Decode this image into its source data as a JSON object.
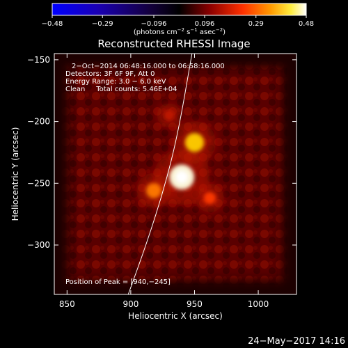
{
  "chart_data": {
    "type": "heatmap",
    "title": "Reconstructed RHESSI Image",
    "xlabel": "Heliocentric X (arcsec)",
    "ylabel": "Heliocentric Y (arcsec)",
    "xlim": [
      840,
      1030
    ],
    "ylim": [
      -340,
      -145
    ],
    "x_ticks": [
      850,
      900,
      950,
      1000
    ],
    "y_ticks": [
      -150,
      -200,
      -250,
      -300
    ],
    "x_tick_labels": [
      "850",
      "900",
      "950",
      "1000"
    ],
    "y_tick_labels": [
      "−150",
      "−200",
      "−250",
      "−300"
    ],
    "colorbar": {
      "colormap": "blue-black-red-yellow-white",
      "range": [
        -0.48,
        0.48
      ],
      "ticks": [
        -0.48,
        -0.29,
        -0.096,
        0.096,
        0.29,
        0.48
      ],
      "tick_labels": [
        "−0.48",
        "−0.29",
        "−0.096",
        "0.096",
        "0.29",
        "0.48"
      ],
      "unit_prefix": "(photons cm",
      "unit_sup1": "−2",
      "unit_mid": " s",
      "unit_sup2": "−1",
      "unit_mid2": " asec",
      "unit_sup3": "−2",
      "unit_suffix": ")"
    },
    "annotations": [
      "2−Oct−2014 06:48:16.000 to 06:58:16.000",
      "Detectors: 3F 6F 9F, Att 0",
      "Energy Range: 3.0 − 6.0 keV",
      "Clean     Total counts: 5.46E+04"
    ],
    "peak_label": "Position of Peak = [940,−245]",
    "peak": [
      940,
      -245
    ],
    "sources": [
      {
        "x": 940,
        "y": -245,
        "intensity": 0.48
      },
      {
        "x": 950,
        "y": -217,
        "intensity": 0.33
      },
      {
        "x": 918,
        "y": -256,
        "intensity": 0.24
      },
      {
        "x": 930,
        "y": -195,
        "intensity": 0.12
      },
      {
        "x": 962,
        "y": -262,
        "intensity": 0.17
      }
    ],
    "limb_curve": [
      [
        898,
        -340
      ],
      [
        912,
        -300
      ],
      [
        926,
        -255
      ],
      [
        937,
        -210
      ],
      [
        948,
        -145
      ]
    ]
  },
  "footer": {
    "date": "24−May−2017 14:16"
  }
}
